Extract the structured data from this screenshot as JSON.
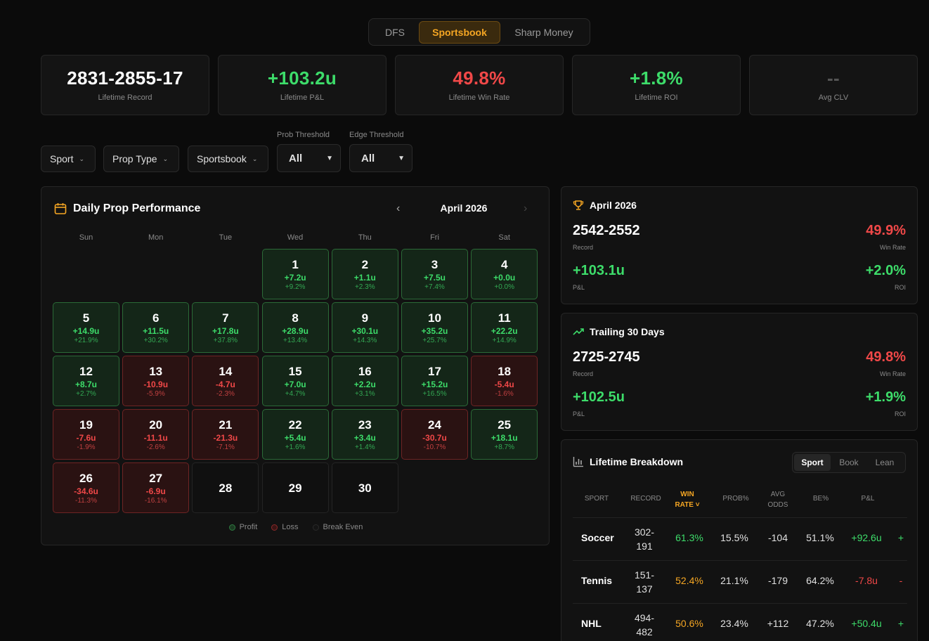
{
  "tabs": [
    "DFS",
    "Sportsbook",
    "Sharp Money"
  ],
  "active_tab": "Sportsbook",
  "stats": [
    {
      "value": "2831-2855-17",
      "label": "Lifetime Record",
      "color": "#ffffff"
    },
    {
      "value": "+103.2u",
      "label": "Lifetime P&L",
      "color": "#3ddc6a"
    },
    {
      "value": "49.8%",
      "label": "Lifetime Win Rate",
      "color": "#f04848"
    },
    {
      "value": "+1.8%",
      "label": "Lifetime ROI",
      "color": "#3ddc6a"
    },
    {
      "value": "--",
      "label": "Avg CLV",
      "color": "#555555"
    }
  ],
  "filters": {
    "sport": "Sport",
    "prop_type": "Prop Type",
    "sportsbook": "Sportsbook",
    "prob_threshold_label": "Prob Threshold",
    "prob_threshold_value": "All",
    "edge_threshold_label": "Edge Threshold",
    "edge_threshold_value": "All"
  },
  "calendar": {
    "title": "Daily Prop Performance",
    "month": "April 2026",
    "weekdays": [
      "Sun",
      "Mon",
      "Tue",
      "Wed",
      "Thu",
      "Fri",
      "Sat"
    ],
    "start_offset": 3,
    "days": [
      {
        "day": "1",
        "pl": "+7.2u",
        "pct": "+9.2%",
        "status": "win"
      },
      {
        "day": "2",
        "pl": "+1.1u",
        "pct": "+2.3%",
        "status": "win"
      },
      {
        "day": "3",
        "pl": "+7.5u",
        "pct": "+7.4%",
        "status": "win"
      },
      {
        "day": "4",
        "pl": "+0.0u",
        "pct": "+0.0%",
        "status": "win"
      },
      {
        "day": "5",
        "pl": "+14.9u",
        "pct": "+21.9%",
        "status": "win"
      },
      {
        "day": "6",
        "pl": "+11.5u",
        "pct": "+30.2%",
        "status": "win"
      },
      {
        "day": "7",
        "pl": "+17.8u",
        "pct": "+37.8%",
        "status": "win"
      },
      {
        "day": "8",
        "pl": "+28.9u",
        "pct": "+13.4%",
        "status": "win"
      },
      {
        "day": "9",
        "pl": "+30.1u",
        "pct": "+14.3%",
        "status": "win"
      },
      {
        "day": "10",
        "pl": "+35.2u",
        "pct": "+25.7%",
        "status": "win"
      },
      {
        "day": "11",
        "pl": "+22.2u",
        "pct": "+14.9%",
        "status": "win"
      },
      {
        "day": "12",
        "pl": "+8.7u",
        "pct": "+2.7%",
        "status": "win"
      },
      {
        "day": "13",
        "pl": "-10.9u",
        "pct": "-5.9%",
        "status": "loss"
      },
      {
        "day": "14",
        "pl": "-4.7u",
        "pct": "-2.3%",
        "status": "loss"
      },
      {
        "day": "15",
        "pl": "+7.0u",
        "pct": "+4.7%",
        "status": "win"
      },
      {
        "day": "16",
        "pl": "+2.2u",
        "pct": "+3.1%",
        "status": "win"
      },
      {
        "day": "17",
        "pl": "+15.2u",
        "pct": "+16.5%",
        "status": "win"
      },
      {
        "day": "18",
        "pl": "-5.4u",
        "pct": "-1.6%",
        "status": "loss"
      },
      {
        "day": "19",
        "pl": "-7.6u",
        "pct": "-1.9%",
        "status": "loss"
      },
      {
        "day": "20",
        "pl": "-11.1u",
        "pct": "-2.6%",
        "status": "loss"
      },
      {
        "day": "21",
        "pl": "-21.3u",
        "pct": "-7.1%",
        "status": "loss"
      },
      {
        "day": "22",
        "pl": "+5.4u",
        "pct": "+1.6%",
        "status": "win"
      },
      {
        "day": "23",
        "pl": "+3.4u",
        "pct": "+1.4%",
        "status": "win"
      },
      {
        "day": "24",
        "pl": "-30.7u",
        "pct": "-10.7%",
        "status": "loss"
      },
      {
        "day": "25",
        "pl": "+18.1u",
        "pct": "+8.7%",
        "status": "win"
      },
      {
        "day": "26",
        "pl": "-34.6u",
        "pct": "-11.3%",
        "status": "loss"
      },
      {
        "day": "27",
        "pl": "-6.9u",
        "pct": "-16.1%",
        "status": "loss"
      },
      {
        "day": "28",
        "pl": "",
        "pct": "",
        "status": "none"
      },
      {
        "day": "29",
        "pl": "",
        "pct": "",
        "status": "none"
      },
      {
        "day": "30",
        "pl": "",
        "pct": "",
        "status": "none"
      }
    ],
    "legend": [
      "Profit",
      "Loss",
      "Break Even"
    ]
  },
  "month_card": {
    "title": "April 2026",
    "record": "2542-2552",
    "record_label": "Record",
    "win_rate": "49.9%",
    "win_rate_label": "Win Rate",
    "pl": "+103.1u",
    "pl_label": "P&L",
    "roi": "+2.0%",
    "roi_label": "ROI"
  },
  "trailing_card": {
    "title": "Trailing 30 Days",
    "record": "2725-2745",
    "record_label": "Record",
    "win_rate": "49.8%",
    "win_rate_label": "Win Rate",
    "pl": "+102.5u",
    "pl_label": "P&L",
    "roi": "+1.9%",
    "roi_label": "ROI"
  },
  "breakdown": {
    "title": "Lifetime Breakdown",
    "tabs": [
      "Sport",
      "Book",
      "Lean"
    ],
    "active_tab": "Sport",
    "columns": [
      "SPORT",
      "RECORD",
      "WIN RATE",
      "PROB%",
      "AVG ODDS",
      "BE%",
      "P&L"
    ],
    "rows": [
      {
        "sport": "Soccer",
        "record": "302-191",
        "win_rate": "61.3%",
        "prob": "15.5%",
        "avg_odds": "-104",
        "be": "51.1%",
        "pl": "+92.6u",
        "extra": "+"
      },
      {
        "sport": "Tennis",
        "record": "151-137",
        "win_rate": "52.4%",
        "prob": "21.1%",
        "avg_odds": "-179",
        "be": "64.2%",
        "pl": "-7.8u",
        "extra": "-"
      },
      {
        "sport": "NHL",
        "record": "494-482",
        "win_rate": "50.6%",
        "prob": "23.4%",
        "avg_odds": "+112",
        "be": "47.2%",
        "pl": "+50.4u",
        "extra": "+"
      }
    ]
  }
}
